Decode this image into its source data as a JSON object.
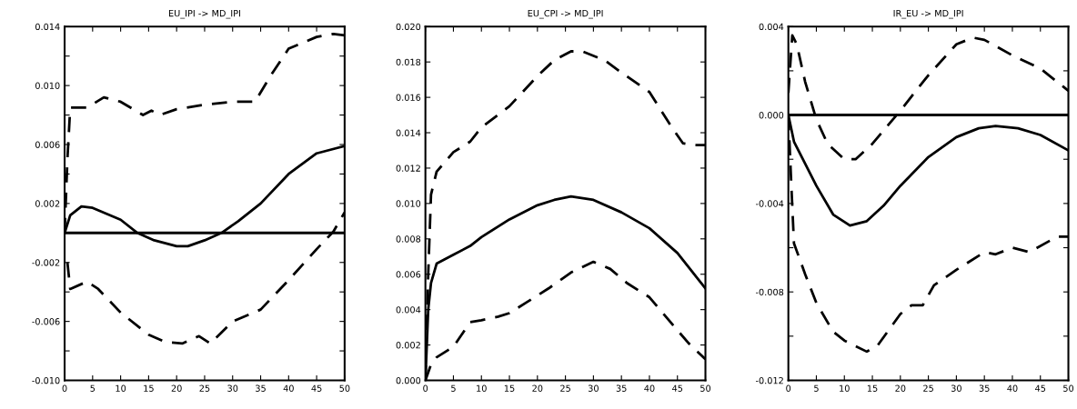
{
  "chart_data": [
    {
      "type": "line",
      "title": "EU_IPI -> MD_IPI",
      "xlim": [
        0,
        50
      ],
      "ylim": [
        -0.01,
        0.014
      ],
      "xticks": [
        0,
        5,
        10,
        15,
        20,
        25,
        30,
        35,
        40,
        45,
        50
      ],
      "yticks": [
        {
          "value": -0.01,
          "label": "-0.010"
        },
        {
          "value": -0.008,
          "label": null
        },
        {
          "value": -0.006,
          "label": "-0.006"
        },
        {
          "value": -0.004,
          "label": null
        },
        {
          "value": -0.002,
          "label": "-0.002"
        },
        {
          "value": 0,
          "label": null
        },
        {
          "value": 0.002,
          "label": "0.002"
        },
        {
          "value": 0.004,
          "label": null
        },
        {
          "value": 0.006,
          "label": "0.006"
        },
        {
          "value": 0.008,
          "label": null
        },
        {
          "value": 0.01,
          "label": "0.010"
        },
        {
          "value": 0.012,
          "label": null
        },
        {
          "value": 0.014,
          "label": "0.014"
        }
      ],
      "ref_lines": [
        {
          "axis": "y",
          "value": 0,
          "color": "#000000",
          "line_style": "solid"
        }
      ],
      "series": [
        {
          "color": "#000000",
          "line_style": "solid",
          "x": [
            0,
            1,
            3,
            5,
            10,
            13,
            16,
            20,
            22,
            25,
            28,
            31,
            35,
            40,
            45,
            50
          ],
          "values": [
            0,
            0.0012,
            0.0018,
            0.0017,
            0.0009,
            0,
            -0.0005,
            -0.0009,
            -0.0009,
            -0.0005,
            0,
            0.0008,
            0.002,
            0.004,
            0.0054,
            0.0059
          ]
        },
        {
          "color": "#000000",
          "line_style": "dashed",
          "x": [
            0,
            0.5,
            1,
            4,
            7,
            10,
            14,
            15.5,
            17,
            20,
            25,
            30,
            34,
            37,
            40,
            45,
            48,
            50
          ],
          "values": [
            0,
            0.005,
            0.0085,
            0.0085,
            0.0092,
            0.0089,
            0.008,
            0.0083,
            0.008,
            0.0084,
            0.0087,
            0.0089,
            0.0089,
            0.0108,
            0.0125,
            0.0133,
            0.0135,
            0.0134
          ]
        },
        {
          "color": "#000000",
          "line_style": "dashed",
          "x": [
            0.5,
            1,
            4,
            6,
            10,
            15,
            18,
            21,
            24,
            26,
            30,
            35,
            40,
            45,
            48,
            50
          ],
          "values": [
            -0.002,
            -0.0038,
            -0.0033,
            -0.0038,
            -0.0054,
            -0.0069,
            -0.0074,
            -0.0075,
            -0.007,
            -0.0075,
            -0.006,
            -0.0052,
            -0.0032,
            -0.0011,
            0.0001,
            0.0014
          ]
        }
      ]
    },
    {
      "type": "line",
      "title": "EU_CPI -> MD_IPI",
      "xlim": [
        0,
        50
      ],
      "ylim": [
        0,
        0.02
      ],
      "xticks": [
        0,
        5,
        10,
        15,
        20,
        25,
        30,
        35,
        40,
        45,
        50
      ],
      "yticks": [
        {
          "value": 0,
          "label": "0.000"
        },
        {
          "value": 0.002,
          "label": "0.002"
        },
        {
          "value": 0.004,
          "label": "0.004"
        },
        {
          "value": 0.006,
          "label": "0.006"
        },
        {
          "value": 0.008,
          "label": "0.008"
        },
        {
          "value": 0.01,
          "label": "0.010"
        },
        {
          "value": 0.012,
          "label": "0.012"
        },
        {
          "value": 0.014,
          "label": "0.014"
        },
        {
          "value": 0.016,
          "label": "0.016"
        },
        {
          "value": 0.018,
          "label": "0.018"
        },
        {
          "value": 0.02,
          "label": "0.020"
        }
      ],
      "series": [
        {
          "color": "#000000",
          "line_style": "solid",
          "x": [
            0,
            0.5,
            1,
            2,
            5,
            8,
            10,
            15,
            20,
            23,
            26,
            30,
            35,
            40,
            45,
            50
          ],
          "values": [
            0,
            0.004,
            0.0055,
            0.0066,
            0.0071,
            0.0076,
            0.0081,
            0.0091,
            0.0099,
            0.0102,
            0.0104,
            0.0102,
            0.0095,
            0.0086,
            0.0072,
            0.0052
          ]
        },
        {
          "color": "#000000",
          "line_style": "dashed",
          "x": [
            0,
            0.5,
            1,
            2,
            5,
            8,
            10,
            15,
            20,
            23,
            26,
            28,
            32,
            35,
            40,
            44,
            46,
            48,
            50
          ],
          "values": [
            0,
            0.006,
            0.0105,
            0.0118,
            0.0129,
            0.0135,
            0.0143,
            0.0155,
            0.0172,
            0.0181,
            0.0186,
            0.0186,
            0.0181,
            0.0174,
            0.0163,
            0.0143,
            0.0134,
            0.0133,
            0.0133
          ]
        },
        {
          "color": "#000000",
          "line_style": "dashed",
          "x": [
            0,
            1,
            2,
            5,
            8,
            10,
            13,
            15,
            18,
            22,
            26,
            30,
            33,
            36,
            40,
            44,
            47,
            50
          ],
          "values": [
            0,
            0.0009,
            0.0013,
            0.0019,
            0.0033,
            0.0034,
            0.0036,
            0.0038,
            0.0044,
            0.0052,
            0.0061,
            0.0067,
            0.0063,
            0.0055,
            0.0047,
            0.0032,
            0.0021,
            0.0012
          ]
        }
      ]
    },
    {
      "type": "line",
      "title": "IR_EU -> MD_IPI",
      "xlim": [
        0,
        50
      ],
      "ylim": [
        -0.012,
        0.004
      ],
      "xticks": [
        0,
        5,
        10,
        15,
        20,
        25,
        30,
        35,
        40,
        45,
        50
      ],
      "yticks": [
        {
          "value": -0.012,
          "label": "-0.012"
        },
        {
          "value": -0.01,
          "label": null
        },
        {
          "value": -0.008,
          "label": "-0.008"
        },
        {
          "value": -0.006,
          "label": null
        },
        {
          "value": -0.004,
          "label": "-0.004"
        },
        {
          "value": -0.002,
          "label": null
        },
        {
          "value": 0,
          "label": "0.000"
        },
        {
          "value": 0.002,
          "label": null
        },
        {
          "value": 0.004,
          "label": "0.004"
        }
      ],
      "ref_lines": [
        {
          "axis": "y",
          "value": 0,
          "color": "#000000",
          "line_style": "solid"
        }
      ],
      "series": [
        {
          "color": "#000000",
          "line_style": "solid",
          "x": [
            0,
            1,
            3,
            5,
            8,
            11,
            14,
            17,
            20,
            25,
            30,
            34,
            37,
            41,
            45,
            50
          ],
          "values": [
            0,
            -0.0012,
            -0.0022,
            -0.0032,
            -0.0045,
            -0.005,
            -0.0048,
            -0.0041,
            -0.0032,
            -0.0019,
            -0.001,
            -0.0006,
            -0.0005,
            -0.0006,
            -0.0009,
            -0.0016
          ]
        },
        {
          "color": "#000000",
          "line_style": "dashed",
          "x": [
            0,
            0.7,
            1.5,
            3,
            5,
            7,
            10,
            12,
            15,
            20,
            25,
            30,
            33,
            35,
            40,
            45,
            50
          ],
          "values": [
            0.001,
            0.0036,
            0.0032,
            0.0015,
            -0.0002,
            -0.0013,
            -0.002,
            -0.002,
            -0.0013,
            0.0002,
            0.0018,
            0.0032,
            0.0035,
            0.0034,
            0.0027,
            0.0021,
            0.0011
          ]
        },
        {
          "color": "#000000",
          "line_style": "dashed",
          "x": [
            0,
            0.5,
            1,
            3,
            5,
            8,
            10,
            14,
            16,
            20,
            22,
            24,
            26,
            30,
            35,
            37,
            40,
            43,
            48,
            50
          ],
          "values": [
            0,
            -0.003,
            -0.0058,
            -0.0072,
            -0.0085,
            -0.0098,
            -0.0102,
            -0.0107,
            -0.0104,
            -0.009,
            -0.0086,
            -0.0086,
            -0.0077,
            -0.007,
            -0.0062,
            -0.0063,
            -0.006,
            -0.0062,
            -0.0055,
            -0.0055
          ]
        }
      ]
    }
  ]
}
